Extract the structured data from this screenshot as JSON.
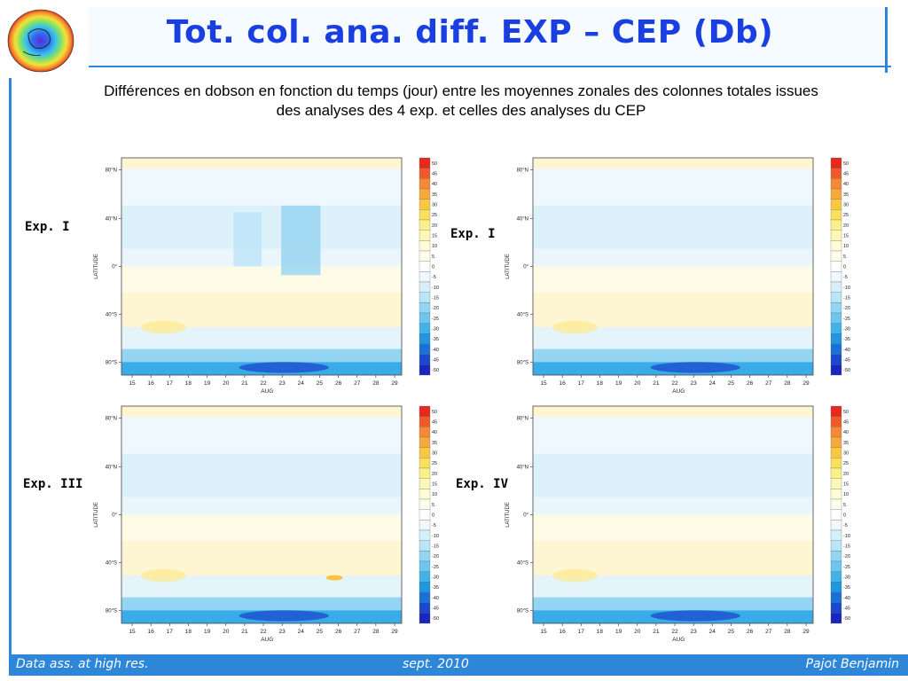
{
  "slide": {
    "title": "Tot. col. ana. diff. EXP – CEP (Db)",
    "subtitle_line1": "Différences en dobson en fonction du temps (jour) entre les moyennes zonales des colonnes totales issues",
    "subtitle_line2": "des analyses des 4 exp. et celles des analyses du CEP"
  },
  "footer": {
    "left": "Data ass. at high res.",
    "center": "sept. 2010",
    "right": "Pajot Benjamin"
  },
  "panels": [
    {
      "label": "Exp. I"
    },
    {
      "label": "Exp. I"
    },
    {
      "label": "Exp. III"
    },
    {
      "label": "Exp. IV"
    }
  ],
  "colors": {
    "accent": "#2e86d9",
    "title": "#1a3fe0"
  },
  "chart_data": [
    {
      "type": "heatmap",
      "ylabel": "LATITUDE",
      "xlabel": "AUG",
      "y_ticks": [
        "80°N",
        "40°N",
        "0°",
        "40°S",
        "80°S"
      ],
      "x_ticks": [
        "15",
        "16",
        "17",
        "18",
        "19",
        "20",
        "21",
        "22",
        "23",
        "24",
        "25",
        "26",
        "27",
        "28",
        "29"
      ],
      "colorbar_ticks": [
        "50",
        "45",
        "40",
        "35",
        "30",
        "25",
        "20",
        "15",
        "10",
        "5",
        "0",
        "-5",
        "-10",
        "-15",
        "-20",
        "-25",
        "-30",
        "-35",
        "-40",
        "-45",
        "-50"
      ],
      "colorbar_colors": [
        "#e8281e",
        "#f05a28",
        "#f58a35",
        "#f7aa3c",
        "#f9c843",
        "#fbe15a",
        "#fdf08a",
        "#fef7b8",
        "#fffbd8",
        "#fffdf0",
        "#ffffff",
        "#eef8fd",
        "#d6f0fb",
        "#b9e5f8",
        "#93d6f3",
        "#6cc6ee",
        "#41b3e8",
        "#1e96e0",
        "#1671d8",
        "#1a49cf",
        "#1c25c0"
      ]
    }
  ]
}
